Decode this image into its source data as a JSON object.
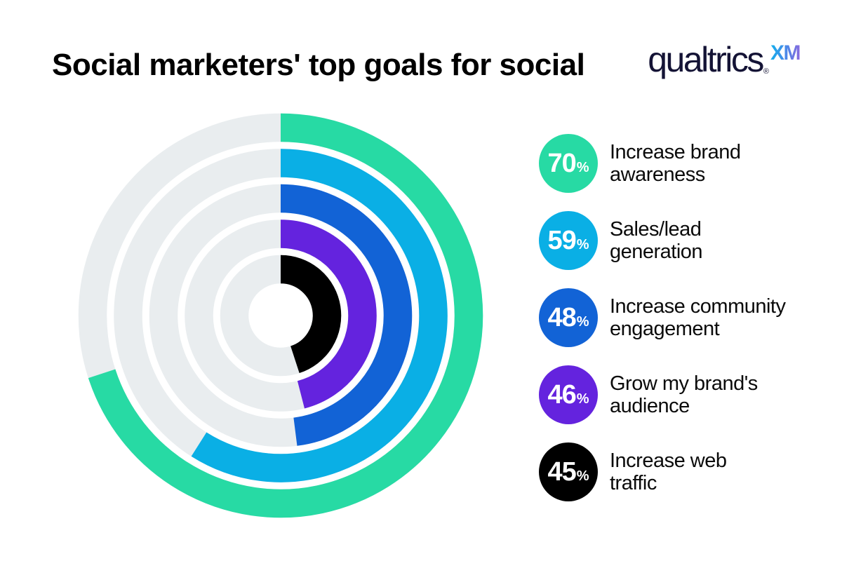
{
  "header": {
    "title": "Social marketers' top goals for social",
    "logo": {
      "brand": "qualtrics",
      "registered": "®",
      "suffix": "XM"
    }
  },
  "chart_data": {
    "type": "radial-bar",
    "title": "Social marketers' top goals for social",
    "unit": "%",
    "value_range": [
      0,
      100
    ],
    "start_angle": "12 o'clock",
    "direction": "clockwise",
    "rings_order": "outermost to innermost follows series order",
    "track_color": "#E9EDEF",
    "legend_position": "right",
    "series": [
      {
        "label": "Increase brand awareness",
        "label_line1": "Increase brand",
        "label_line2": "awareness",
        "value": 70,
        "display_value": "70",
        "unit": "%",
        "color": "#27DAA4"
      },
      {
        "label": "Sales/lead generation",
        "label_line1": "Sales/lead",
        "label_line2": "generation",
        "value": 59,
        "display_value": "59",
        "unit": "%",
        "color": "#0AAFE5"
      },
      {
        "label": "Increase community engagement",
        "label_line1": "Increase community",
        "label_line2": "engagement",
        "value": 48,
        "display_value": "48",
        "unit": "%",
        "color": "#1263D6"
      },
      {
        "label": "Grow my brand's audience",
        "label_line1": "Grow my brand's",
        "label_line2": "audience",
        "value": 46,
        "display_value": "46",
        "unit": "%",
        "color": "#6423DE"
      },
      {
        "label": "Increase web traffic",
        "label_line1": "Increase web",
        "label_line2": "traffic",
        "value": 45,
        "display_value": "45",
        "unit": "%",
        "color": "#000000"
      }
    ]
  }
}
